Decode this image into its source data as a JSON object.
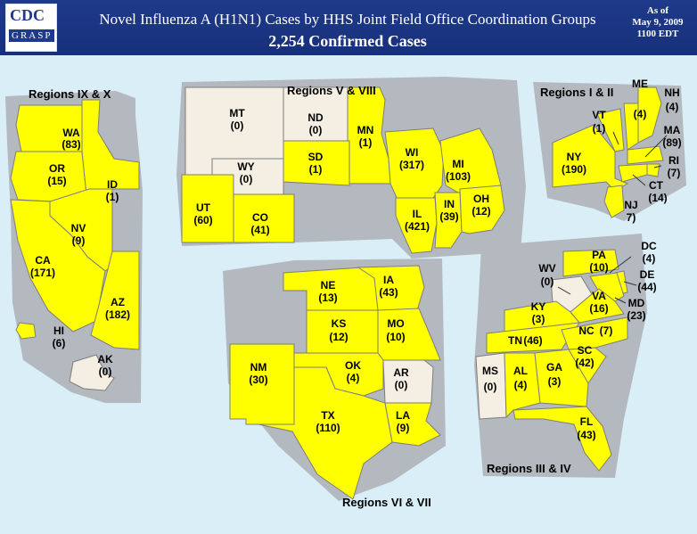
{
  "header": {
    "logo_text": "CDC",
    "logo_sub": "GRASP",
    "title": "Novel Influenza A (H1N1) Cases by HHS Joint Field Office Coordination Groups",
    "subtitle": "2,254 Confirmed Cases",
    "as_of_1": "As of",
    "as_of_2": "May 9, 2009",
    "as_of_3": "1100 EDT"
  },
  "colors": {
    "affected": "#ffff00",
    "unaffected": "#f4efe2",
    "region_bg": "#b3b9be",
    "water": "#d9eef7",
    "border": "#7d7d7d"
  },
  "regions": {
    "west": "Regions IX & X",
    "central_north": "Regions V & VIII",
    "northeast": "Regions I & II",
    "south_central": "Regions VI & VII",
    "southeast": "Regions III & IV"
  },
  "states": {
    "WA": {
      "abbr": "WA",
      "cases": "(83)"
    },
    "OR": {
      "abbr": "OR",
      "cases": "(15)"
    },
    "ID": {
      "abbr": "ID",
      "cases": "(1)"
    },
    "NV": {
      "abbr": "NV",
      "cases": "(9)"
    },
    "CA": {
      "abbr": "CA",
      "cases": "(171)"
    },
    "AZ": {
      "abbr": "AZ",
      "cases": "(182)"
    },
    "HI": {
      "abbr": "HI",
      "cases": "(6)"
    },
    "AK": {
      "abbr": "AK",
      "cases": "(0)"
    },
    "MT": {
      "abbr": "MT",
      "cases": "(0)"
    },
    "ND": {
      "abbr": "ND",
      "cases": "(0)"
    },
    "MN": {
      "abbr": "MN",
      "cases": "(1)"
    },
    "SD": {
      "abbr": "SD",
      "cases": "(1)"
    },
    "WY": {
      "abbr": "WY",
      "cases": "(0)"
    },
    "WI": {
      "abbr": "WI",
      "cases": "(317)"
    },
    "MI": {
      "abbr": "MI",
      "cases": "(103)"
    },
    "UT": {
      "abbr": "UT",
      "cases": "(60)"
    },
    "CO": {
      "abbr": "CO",
      "cases": "(41)"
    },
    "IL": {
      "abbr": "IL",
      "cases": "(421)"
    },
    "IN": {
      "abbr": "IN",
      "cases": "(39)"
    },
    "OH": {
      "abbr": "OH",
      "cases": "(12)"
    },
    "ME": {
      "abbr": "ME",
      "cases": "(4)"
    },
    "NH": {
      "abbr": "NH",
      "cases": "(4)"
    },
    "VT": {
      "abbr": "VT",
      "cases": "(1)"
    },
    "MA": {
      "abbr": "MA",
      "cases": "(89)"
    },
    "NY": {
      "abbr": "NY",
      "cases": "(190)"
    },
    "RI": {
      "abbr": "RI",
      "cases": "(7)"
    },
    "CT": {
      "abbr": "CT",
      "cases": "(14)"
    },
    "NJ": {
      "abbr": "NJ",
      "cases": "7)"
    },
    "NE": {
      "abbr": "NE",
      "cases": "(13)"
    },
    "IA": {
      "abbr": "IA",
      "cases": "(43)"
    },
    "KS": {
      "abbr": "KS",
      "cases": "(12)"
    },
    "MO": {
      "abbr": "MO",
      "cases": "(10)"
    },
    "NM": {
      "abbr": "NM",
      "cases": "(30)"
    },
    "OK": {
      "abbr": "OK",
      "cases": "(4)"
    },
    "AR": {
      "abbr": "AR",
      "cases": "(0)"
    },
    "TX": {
      "abbr": "TX",
      "cases": "(110)"
    },
    "LA": {
      "abbr": "LA",
      "cases": "(9)"
    },
    "PA": {
      "abbr": "PA",
      "cases": "(10)"
    },
    "DC": {
      "abbr": "DC",
      "cases": "(4)"
    },
    "DE": {
      "abbr": "DE",
      "cases": "(44)"
    },
    "WV": {
      "abbr": "WV",
      "cases": "(0)"
    },
    "VA": {
      "abbr": "VA",
      "cases": "(16)"
    },
    "MD": {
      "abbr": "MD",
      "cases": "(23)"
    },
    "KY": {
      "abbr": "KY",
      "cases": "(3)"
    },
    "TN": {
      "abbr": "TN",
      "cases": "(46)"
    },
    "NC": {
      "abbr": "NC",
      "cases": "(7)"
    },
    "SC": {
      "abbr": "SC",
      "cases": "(42)"
    },
    "MS": {
      "abbr": "MS",
      "cases": "(0)"
    },
    "AL": {
      "abbr": "AL",
      "cases": "(4)"
    },
    "GA": {
      "abbr": "GA",
      "cases": "(3)"
    },
    "FL": {
      "abbr": "FL",
      "cases": "(43)"
    }
  }
}
